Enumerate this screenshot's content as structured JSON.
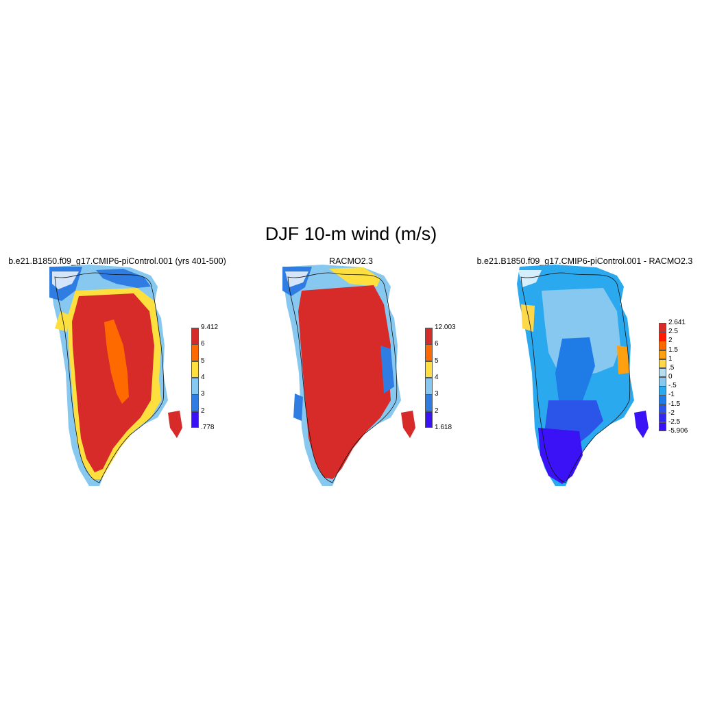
{
  "title": "DJF 10-m wind (m/s)",
  "panels": [
    {
      "title": "b.e21.B1850.f09_g17.CMIP6-piControl.001 (yrs 401-500)",
      "colorbar": {
        "labels": [
          "9.412",
          "6",
          "5",
          "4",
          "3",
          "2",
          ".778"
        ],
        "colors": [
          "#d62b28",
          "#ff6a00",
          "#fde03d",
          "#87c8f0",
          "#2f7de3",
          "#3a12f5"
        ]
      }
    },
    {
      "title": "RACMO2.3",
      "colorbar": {
        "labels": [
          "12.003",
          "6",
          "5",
          "4",
          "3",
          "2",
          "1.618"
        ],
        "colors": [
          "#d62b28",
          "#ff6a00",
          "#fde03d",
          "#87c8f0",
          "#2f7de3",
          "#3a12f5"
        ]
      }
    },
    {
      "title": "b.e21.B1850.f09_g17.CMIP6-piControl.001 - RACMO2.3",
      "colorbar": {
        "labels": [
          "2.641",
          "2.5",
          "2",
          "1.5",
          "1",
          ".5",
          "0",
          "-.5",
          "-1",
          "-1.5",
          "-2",
          "-2.5",
          "-5.906"
        ],
        "colors": [
          "#d62b28",
          "#ff1a00",
          "#ff6a00",
          "#ffa010",
          "#fdd84a",
          "#b6dcf0",
          "#87c8f0",
          "#2aa9ee",
          "#1f7be6",
          "#2a55e8",
          "#3328f0",
          "#3a12f5"
        ]
      }
    }
  ]
}
